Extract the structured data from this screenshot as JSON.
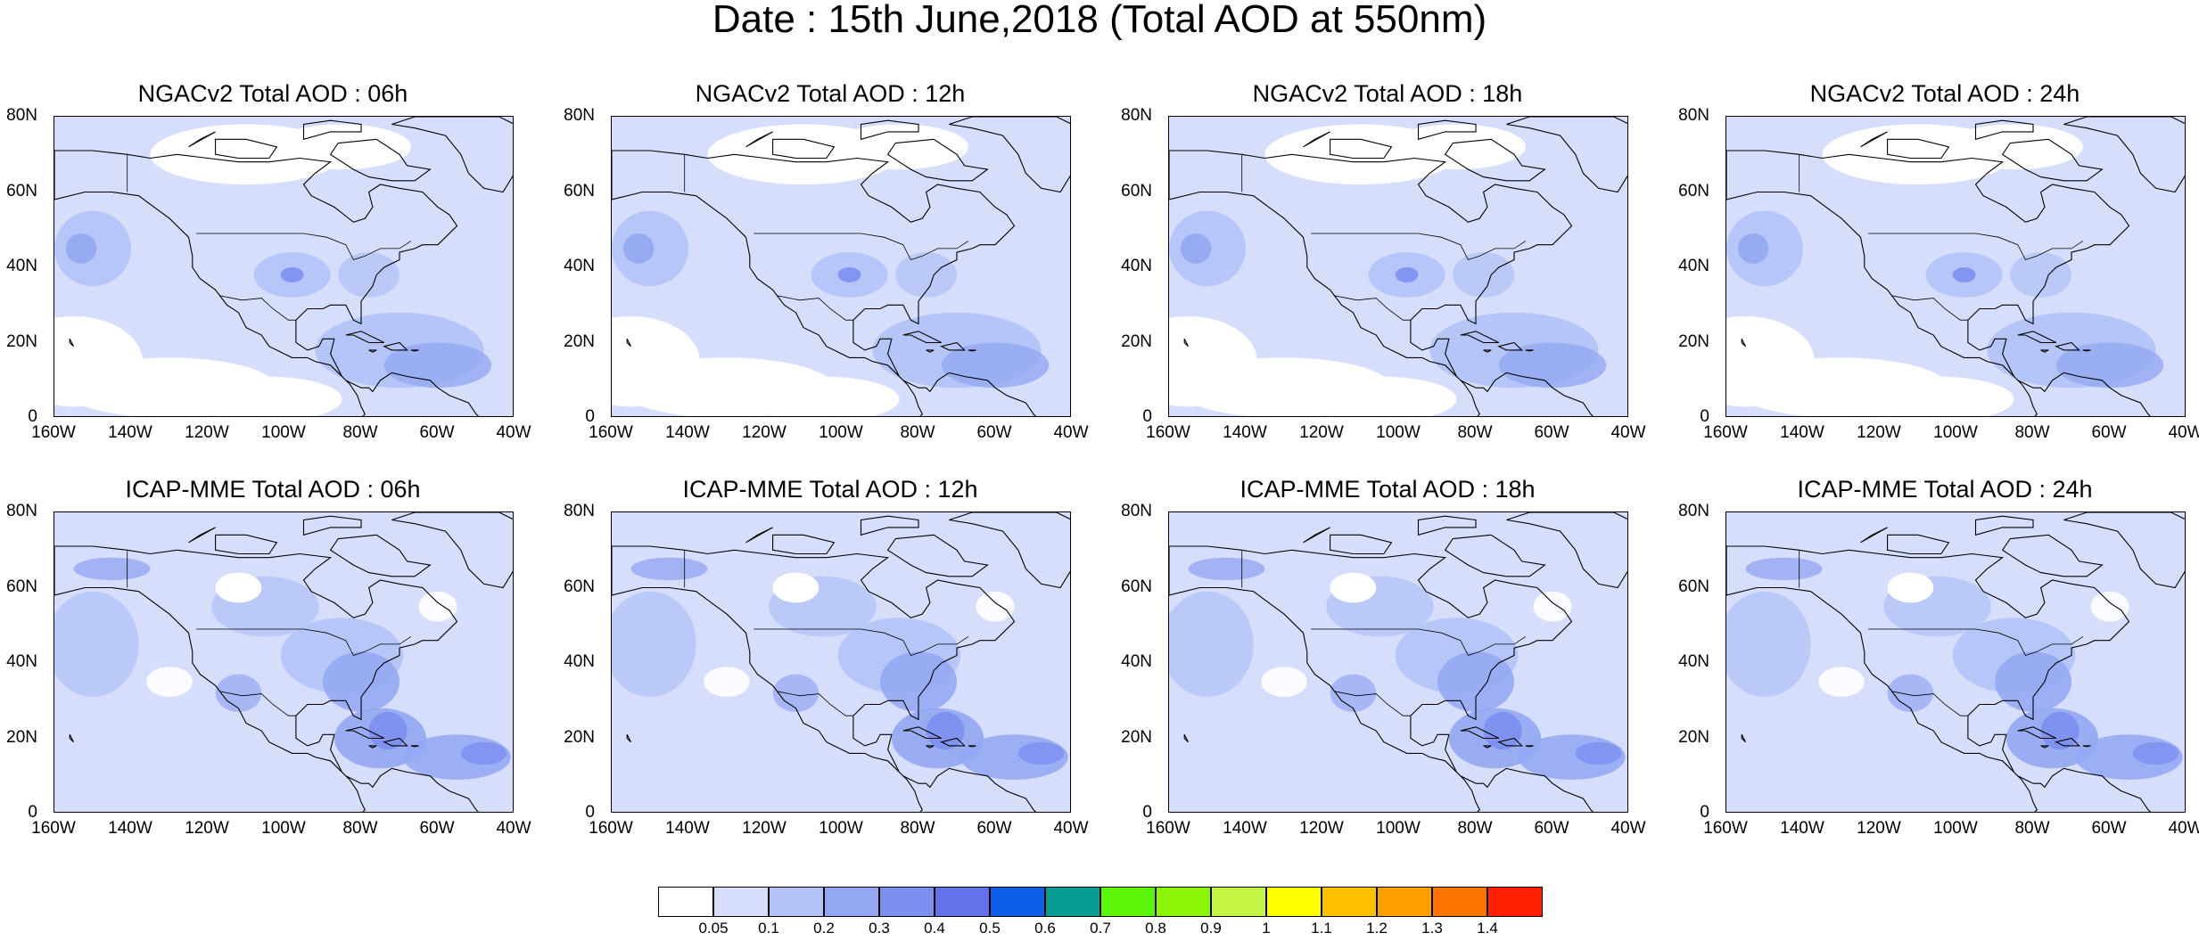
{
  "title": "Date : 15th June,2018 (Total AOD at 550nm)",
  "y_ticks": [
    "80N",
    "60N",
    "40N",
    "20N",
    "0"
  ],
  "x_ticks": [
    "160W",
    "140W",
    "120W",
    "100W",
    "80W",
    "60W",
    "40W"
  ],
  "panels": [
    {
      "title": "NGACv2 Total AOD : 06h",
      "model": "NGACv2",
      "hour": "06h"
    },
    {
      "title": "NGACv2 Total AOD : 12h",
      "model": "NGACv2",
      "hour": "12h"
    },
    {
      "title": "NGACv2 Total AOD : 18h",
      "model": "NGACv2",
      "hour": "18h"
    },
    {
      "title": "NGACv2 Total AOD : 24h",
      "model": "NGACv2",
      "hour": "24h"
    },
    {
      "title": "ICAP-MME Total AOD : 06h",
      "model": "ICAP-MME",
      "hour": "06h"
    },
    {
      "title": "ICAP-MME Total AOD : 12h",
      "model": "ICAP-MME",
      "hour": "12h"
    },
    {
      "title": "ICAP-MME Total AOD : 18h",
      "model": "ICAP-MME",
      "hour": "18h"
    },
    {
      "title": "ICAP-MME Total AOD : 24h",
      "model": "ICAP-MME",
      "hour": "24h"
    }
  ],
  "colorbar": {
    "labels": [
      "0.05",
      "0.1",
      "0.2",
      "0.3",
      "0.4",
      "0.5",
      "0.6",
      "0.7",
      "0.8",
      "0.9",
      "1",
      "1.1",
      "1.2",
      "1.3",
      "1.4"
    ],
    "colors": [
      "#ffffff",
      "#d6defc",
      "#b4c3f7",
      "#93a7f2",
      "#7d8ff0",
      "#6472ea",
      "#0f5ee8",
      "#079d94",
      "#5cf60a",
      "#8bf508",
      "#c4f444",
      "#ffff00",
      "#ffc000",
      "#ffa000",
      "#ff7400",
      "#ff2000"
    ]
  },
  "map_colors": {
    "water": "#d6defc",
    "clean": "#ffffff",
    "moderate": "#b4c3f7",
    "high": "#93a7f2",
    "very_high": "#7d8ff0",
    "coast": "#000000"
  }
}
